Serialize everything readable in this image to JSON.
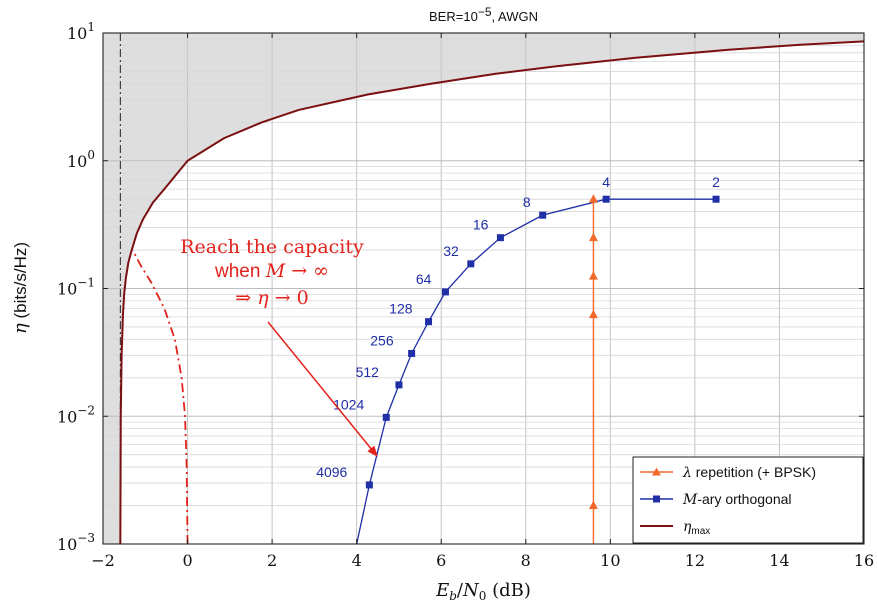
{
  "chart_data": {
    "type": "line",
    "title": "BER=10−5, AWGN",
    "xlabel": "Eb/N0 (dB)",
    "ylabel": "η (bits/s/Hz)",
    "xlim": [
      -2,
      16
    ],
    "ylim": [
      0.001,
      10
    ],
    "yscale": "log",
    "x_ticks": [
      "−2",
      "0",
      "2",
      "4",
      "6",
      "8",
      "10",
      "12",
      "14",
      "16"
    ],
    "y_ticks": [
      {
        "base": "10",
        "exp": "−3",
        "value": 0.001
      },
      {
        "base": "10",
        "exp": "−2",
        "value": 0.01
      },
      {
        "base": "10",
        "exp": "−1",
        "value": 0.1
      },
      {
        "base": "10",
        "exp": "0",
        "value": 1
      },
      {
        "base": "10",
        "exp": "1",
        "value": 10
      }
    ],
    "grid": true,
    "legend_position": "bottom-right",
    "colors": {
      "capacity": "#7a1010",
      "orthogonal": "#1f2fa6",
      "repetition": "#f2692a",
      "annotation": "#e3221c",
      "shaded_region": "#dedede"
    },
    "series": [
      {
        "name": "λ repetition (+ BPSK)",
        "marker": "triangle",
        "x": [
          9.6,
          9.6,
          9.6,
          9.6,
          9.6
        ],
        "y": [
          0.5,
          0.25,
          0.125,
          0.0625,
          0.002
        ]
      },
      {
        "name": "M-ary orthogonal",
        "marker": "square",
        "x": [
          12.5,
          9.9,
          8.4,
          7.4,
          6.7,
          6.1,
          5.7,
          5.3,
          5.0,
          4.7,
          4.3
        ],
        "y": [
          0.5,
          0.5,
          0.375,
          0.25,
          0.156,
          0.094,
          0.055,
          0.031,
          0.0176,
          0.0098,
          0.0029
        ],
        "point_labels": [
          "2",
          "4",
          "8",
          "16",
          "32",
          "64",
          "128",
          "256",
          "512",
          "1024",
          "4096"
        ],
        "tail_x": [
          4.0,
          4.15,
          4.3
        ],
        "tail_y": [
          0.001,
          0.0017,
          0.0029
        ]
      },
      {
        "name": "ηmax",
        "marker": "none",
        "x": [
          -1.59,
          -1.58,
          -1.56,
          -1.53,
          -1.5,
          -1.46,
          -1.4,
          -1.32,
          -1.2,
          -1.05,
          -0.82,
          -0.55,
          0.0,
          0.86,
          1.76,
          2.63,
          4.26,
          5.74,
          7.29,
          8.75,
          10.6,
          12.8,
          14.5,
          16.0
        ],
        "y": [
          0.001,
          0.01,
          0.03,
          0.06,
          0.09,
          0.12,
          0.16,
          0.2,
          0.27,
          0.35,
          0.47,
          0.6,
          1.0,
          1.5,
          2.0,
          2.5,
          3.3,
          4.0,
          4.8,
          5.5,
          6.4,
          7.4,
          8.1,
          8.6
        ]
      }
    ],
    "shannon_limit_db": -1.59,
    "dashdot_curve": {
      "x": [
        0.0,
        -0.02,
        -0.06,
        -0.14,
        -0.3,
        -0.55,
        -0.85,
        -1.1,
        -1.3
      ],
      "y": [
        0.001,
        0.004,
        0.01,
        0.02,
        0.04,
        0.07,
        0.11,
        0.15,
        0.2
      ]
    },
    "annotation": {
      "lines": [
        "Reach the capacity",
        "when M → ∞",
        "⇒ η → 0"
      ],
      "arrow_to_x": 4.5,
      "arrow_to_y": 0.0048
    }
  }
}
